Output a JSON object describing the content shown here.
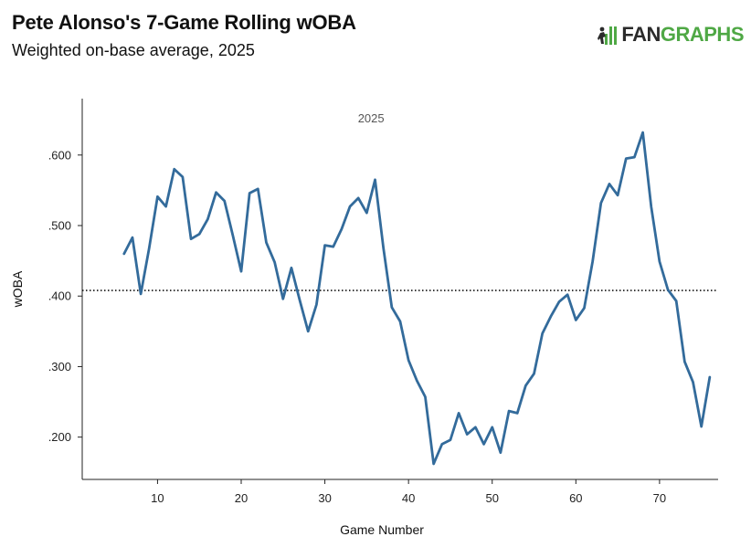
{
  "header": {
    "title": "Pete Alonso's 7-Game Rolling wOBA",
    "subtitle": "Weighted on-base average, 2025",
    "logo_prefix": "FAN",
    "logo_suffix": "GRAPHS",
    "logo_icon": "fangraphs-logo-icon"
  },
  "colors": {
    "line": "#336b9b",
    "reference_line": "#111111",
    "axis": "#222222",
    "logo_green": "#4fa845"
  },
  "chart_data": {
    "type": "line",
    "title": "Pete Alonso's 7-Game Rolling wOBA",
    "subtitle": "Weighted on-base average, 2025",
    "xlabel": "Game Number",
    "ylabel": "wOBA",
    "annotation": "2025",
    "xlim": [
      1,
      77
    ],
    "ylim": [
      0.14,
      0.68
    ],
    "x_ticks": [
      {
        "value": 10,
        "label": "10"
      },
      {
        "value": 20,
        "label": "20"
      },
      {
        "value": 30,
        "label": "30"
      },
      {
        "value": 40,
        "label": "40"
      },
      {
        "value": 50,
        "label": "50"
      },
      {
        "value": 60,
        "label": "60"
      },
      {
        "value": 70,
        "label": "70"
      }
    ],
    "y_ticks": [
      {
        "value": 0.2,
        "label": ".200"
      },
      {
        "value": 0.3,
        "label": ".300"
      },
      {
        "value": 0.4,
        "label": ".400"
      },
      {
        "value": 0.5,
        "label": ".500"
      },
      {
        "value": 0.6,
        "label": ".600"
      }
    ],
    "reference_line": {
      "y": 0.408,
      "style": "dotted"
    },
    "grid": false,
    "legend": "none",
    "x": [
      6,
      7,
      8,
      9,
      10,
      11,
      12,
      13,
      14,
      15,
      16,
      17,
      18,
      19,
      20,
      21,
      22,
      23,
      24,
      25,
      26,
      27,
      28,
      29,
      30,
      31,
      32,
      33,
      34,
      35,
      36,
      37,
      38,
      39,
      40,
      41,
      42,
      43,
      44,
      45,
      46,
      47,
      48,
      49,
      50,
      51,
      52,
      53,
      54,
      55,
      56,
      57,
      58,
      59,
      60,
      61,
      62,
      63,
      64,
      65,
      66,
      67,
      68,
      69,
      70,
      71,
      72,
      73,
      74,
      75,
      76
    ],
    "series": [
      {
        "values": [
          0.46,
          0.483,
          0.403,
          0.468,
          0.541,
          0.527,
          0.58,
          0.569,
          0.481,
          0.488,
          0.509,
          0.547,
          0.535,
          0.486,
          0.435,
          0.546,
          0.552,
          0.476,
          0.448,
          0.396,
          0.44,
          0.394,
          0.35,
          0.388,
          0.472,
          0.47,
          0.495,
          0.527,
          0.539,
          0.518,
          0.565,
          0.468,
          0.384,
          0.364,
          0.309,
          0.28,
          0.257,
          0.162,
          0.19,
          0.196,
          0.234,
          0.204,
          0.214,
          0.19,
          0.214,
          0.178,
          0.237,
          0.234,
          0.273,
          0.29,
          0.347,
          0.371,
          0.392,
          0.402,
          0.366,
          0.383,
          0.449,
          0.532,
          0.559,
          0.543,
          0.595,
          0.597,
          0.632,
          0.527,
          0.449,
          0.409,
          0.393,
          0.307,
          0.278,
          0.215,
          0.285
        ]
      }
    ]
  }
}
